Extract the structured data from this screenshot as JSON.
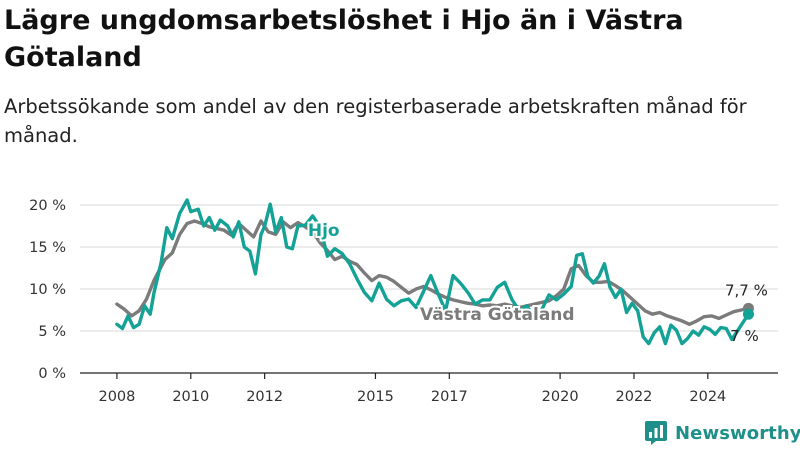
{
  "header": {
    "title": "Lägre ungdomsarbetslöshet i Hjo än i Västra Götaland",
    "subtitle": "Arbetssökande som andel av den registerbaserade arbetskraften månad för månad."
  },
  "brand": {
    "name": "Newsworthy",
    "icon": "bar-chart-logo-icon"
  },
  "colors": {
    "hjo": "#14a196",
    "region": "#7b7b7b",
    "grid": "#d9d9d9",
    "brand": "#1f8f8a"
  },
  "chart_data": {
    "type": "line",
    "title": "",
    "xlabel": "",
    "ylabel": "",
    "ylim": [
      0,
      20
    ],
    "xlim": [
      2007.5,
      2025.5
    ],
    "y_ticks": [
      "0 %",
      "5 %",
      "10 %",
      "15 %",
      "20 %"
    ],
    "x_ticks": [
      "2008",
      "2010",
      "2012",
      "2015",
      "2017",
      "2020",
      "2022",
      "2024"
    ],
    "grid": "horizontal",
    "series": [
      {
        "name": "Västra Götaland",
        "end_label": "7,7 %",
        "points": [
          [
            2008.0,
            8.2
          ],
          [
            2008.2,
            7.6
          ],
          [
            2008.4,
            6.8
          ],
          [
            2008.6,
            7.4
          ],
          [
            2008.8,
            8.8
          ],
          [
            2009.0,
            11.0
          ],
          [
            2009.3,
            13.5
          ],
          [
            2009.5,
            14.3
          ],
          [
            2009.7,
            16.5
          ],
          [
            2009.9,
            17.8
          ],
          [
            2010.1,
            18.1
          ],
          [
            2010.3,
            17.8
          ],
          [
            2010.5,
            17.4
          ],
          [
            2010.7,
            17.2
          ],
          [
            2010.9,
            17.0
          ],
          [
            2011.1,
            16.4
          ],
          [
            2011.3,
            17.8
          ],
          [
            2011.5,
            17.0
          ],
          [
            2011.7,
            16.2
          ],
          [
            2011.9,
            18.1
          ],
          [
            2012.1,
            16.8
          ],
          [
            2012.3,
            16.5
          ],
          [
            2012.5,
            18.0
          ],
          [
            2012.7,
            17.3
          ],
          [
            2012.9,
            17.9
          ],
          [
            2013.1,
            17.4
          ],
          [
            2013.3,
            16.8
          ],
          [
            2013.5,
            15.5
          ],
          [
            2013.7,
            14.6
          ],
          [
            2013.9,
            13.5
          ],
          [
            2014.1,
            13.9
          ],
          [
            2014.3,
            13.3
          ],
          [
            2014.5,
            12.9
          ],
          [
            2014.7,
            11.9
          ],
          [
            2014.9,
            11.0
          ],
          [
            2015.1,
            11.6
          ],
          [
            2015.3,
            11.4
          ],
          [
            2015.5,
            10.9
          ],
          [
            2015.7,
            10.2
          ],
          [
            2015.9,
            9.5
          ],
          [
            2016.1,
            10.0
          ],
          [
            2016.3,
            10.3
          ],
          [
            2016.5,
            9.9
          ],
          [
            2016.7,
            9.4
          ],
          [
            2016.9,
            9.0
          ],
          [
            2017.1,
            8.7
          ],
          [
            2017.3,
            8.5
          ],
          [
            2017.5,
            8.3
          ],
          [
            2017.7,
            8.2
          ],
          [
            2017.9,
            8.0
          ],
          [
            2018.1,
            8.1
          ],
          [
            2018.3,
            8.0
          ],
          [
            2018.5,
            8.2
          ],
          [
            2018.7,
            8.0
          ],
          [
            2018.9,
            7.8
          ],
          [
            2019.1,
            8.0
          ],
          [
            2019.3,
            8.2
          ],
          [
            2019.5,
            8.4
          ],
          [
            2019.7,
            8.6
          ],
          [
            2019.9,
            9.2
          ],
          [
            2020.1,
            10.0
          ],
          [
            2020.3,
            12.4
          ],
          [
            2020.5,
            12.8
          ],
          [
            2020.7,
            11.6
          ],
          [
            2020.9,
            10.8
          ],
          [
            2021.1,
            10.8
          ],
          [
            2021.3,
            10.9
          ],
          [
            2021.5,
            10.4
          ],
          [
            2021.7,
            9.8
          ],
          [
            2021.9,
            9.0
          ],
          [
            2022.1,
            8.2
          ],
          [
            2022.3,
            7.4
          ],
          [
            2022.5,
            7.0
          ],
          [
            2022.7,
            7.2
          ],
          [
            2022.9,
            6.8
          ],
          [
            2023.1,
            6.5
          ],
          [
            2023.3,
            6.2
          ],
          [
            2023.5,
            5.8
          ],
          [
            2023.7,
            6.2
          ],
          [
            2023.9,
            6.7
          ],
          [
            2024.1,
            6.8
          ],
          [
            2024.3,
            6.5
          ],
          [
            2024.5,
            6.9
          ],
          [
            2024.7,
            7.3
          ],
          [
            2024.9,
            7.5
          ],
          [
            2025.1,
            7.7
          ]
        ]
      },
      {
        "name": "Hjo",
        "end_label": "7 %",
        "points": [
          [
            2008.0,
            5.8
          ],
          [
            2008.15,
            5.3
          ],
          [
            2008.3,
            6.8
          ],
          [
            2008.45,
            5.4
          ],
          [
            2008.6,
            5.8
          ],
          [
            2008.75,
            8.0
          ],
          [
            2008.9,
            7.0
          ],
          [
            2009.0,
            9.5
          ],
          [
            2009.2,
            13.2
          ],
          [
            2009.35,
            17.3
          ],
          [
            2009.5,
            16.0
          ],
          [
            2009.7,
            19.0
          ],
          [
            2009.9,
            20.6
          ],
          [
            2010.0,
            19.2
          ],
          [
            2010.2,
            19.5
          ],
          [
            2010.35,
            17.5
          ],
          [
            2010.5,
            18.5
          ],
          [
            2010.65,
            17.0
          ],
          [
            2010.8,
            18.2
          ],
          [
            2011.0,
            17.5
          ],
          [
            2011.15,
            16.2
          ],
          [
            2011.3,
            18.0
          ],
          [
            2011.45,
            15.0
          ],
          [
            2011.6,
            14.5
          ],
          [
            2011.75,
            11.8
          ],
          [
            2011.9,
            16.5
          ],
          [
            2012.0,
            17.5
          ],
          [
            2012.15,
            20.1
          ],
          [
            2012.3,
            16.8
          ],
          [
            2012.45,
            18.5
          ],
          [
            2012.6,
            15.0
          ],
          [
            2012.75,
            14.8
          ],
          [
            2012.9,
            17.5
          ],
          [
            2013.1,
            17.6
          ],
          [
            2013.3,
            18.7
          ],
          [
            2013.5,
            17.4
          ],
          [
            2013.7,
            13.9
          ],
          [
            2013.9,
            14.8
          ],
          [
            2014.1,
            14.2
          ],
          [
            2014.3,
            13.0
          ],
          [
            2014.5,
            11.2
          ],
          [
            2014.7,
            9.6
          ],
          [
            2014.9,
            8.6
          ],
          [
            2015.1,
            10.7
          ],
          [
            2015.3,
            8.8
          ],
          [
            2015.5,
            8.0
          ],
          [
            2015.7,
            8.6
          ],
          [
            2015.9,
            8.8
          ],
          [
            2016.1,
            7.8
          ],
          [
            2016.3,
            9.7
          ],
          [
            2016.5,
            11.6
          ],
          [
            2016.7,
            9.4
          ],
          [
            2016.9,
            7.4
          ],
          [
            2017.1,
            11.6
          ],
          [
            2017.3,
            10.7
          ],
          [
            2017.5,
            9.6
          ],
          [
            2017.7,
            8.2
          ],
          [
            2017.9,
            8.7
          ],
          [
            2018.1,
            8.7
          ],
          [
            2018.3,
            10.2
          ],
          [
            2018.5,
            10.8
          ],
          [
            2018.7,
            8.7
          ],
          [
            2018.9,
            7.4
          ],
          [
            2019.1,
            8.0
          ],
          [
            2019.3,
            6.5
          ],
          [
            2019.5,
            7.5
          ],
          [
            2019.7,
            9.3
          ],
          [
            2019.9,
            8.7
          ],
          [
            2020.1,
            9.4
          ],
          [
            2020.3,
            10.3
          ],
          [
            2020.45,
            14.0
          ],
          [
            2020.6,
            14.2
          ],
          [
            2020.75,
            11.5
          ],
          [
            2020.9,
            10.7
          ],
          [
            2021.05,
            11.5
          ],
          [
            2021.2,
            13.0
          ],
          [
            2021.35,
            10.2
          ],
          [
            2021.5,
            9.0
          ],
          [
            2021.65,
            10.0
          ],
          [
            2021.8,
            7.2
          ],
          [
            2021.95,
            8.3
          ],
          [
            2022.1,
            7.4
          ],
          [
            2022.25,
            4.3
          ],
          [
            2022.4,
            3.5
          ],
          [
            2022.55,
            4.8
          ],
          [
            2022.7,
            5.5
          ],
          [
            2022.85,
            3.5
          ],
          [
            2023.0,
            5.7
          ],
          [
            2023.15,
            5.1
          ],
          [
            2023.3,
            3.5
          ],
          [
            2023.45,
            4.1
          ],
          [
            2023.6,
            5.0
          ],
          [
            2023.75,
            4.5
          ],
          [
            2023.9,
            5.5
          ],
          [
            2024.05,
            5.2
          ],
          [
            2024.2,
            4.6
          ],
          [
            2024.35,
            5.4
          ],
          [
            2024.5,
            5.3
          ],
          [
            2024.65,
            4.0
          ],
          [
            2024.8,
            5.0
          ],
          [
            2024.95,
            6.0
          ],
          [
            2025.1,
            7.0
          ]
        ]
      }
    ]
  }
}
